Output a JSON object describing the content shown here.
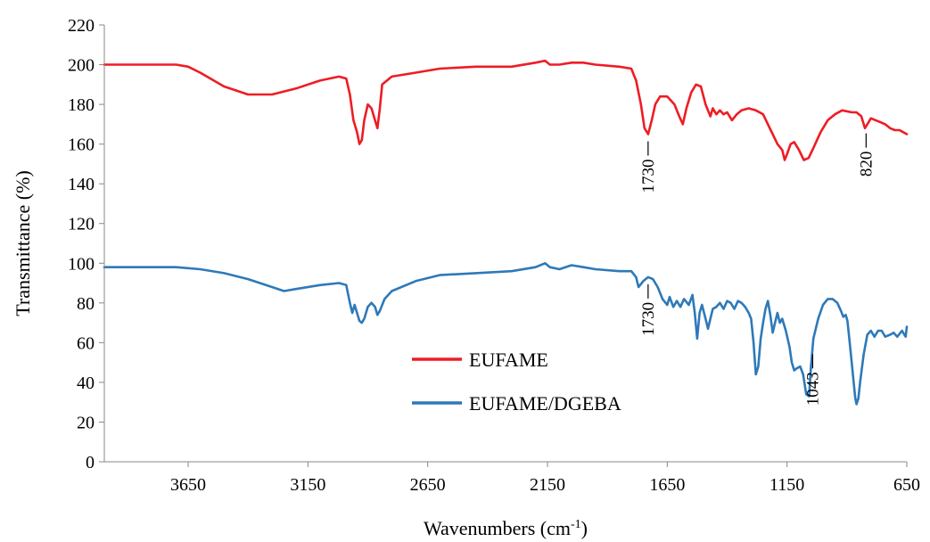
{
  "chart_data": {
    "type": "line",
    "xlabel": "Wavenumbers (cm",
    "xlabel_sup": "-1",
    "xlabel_close": ")",
    "ylabel": "Transmittance (%)",
    "xlim": [
      4000,
      650
    ],
    "ylim": [
      0,
      220
    ],
    "x_reversed": true,
    "xticks": [
      3650,
      3150,
      2650,
      2150,
      1650,
      1150,
      650
    ],
    "yticks": [
      0,
      20,
      40,
      60,
      80,
      100,
      120,
      140,
      160,
      180,
      200,
      220
    ],
    "grid": false,
    "legend_position": "center-left",
    "series": [
      {
        "name": "EUFAME",
        "color": "#ee1c25",
        "points": [
          [
            4000,
            200
          ],
          [
            3850,
            200
          ],
          [
            3700,
            200
          ],
          [
            3650,
            199
          ],
          [
            3600,
            196
          ],
          [
            3500,
            189
          ],
          [
            3400,
            185
          ],
          [
            3300,
            185
          ],
          [
            3200,
            188
          ],
          [
            3100,
            192
          ],
          [
            3020,
            194
          ],
          [
            2990,
            193
          ],
          [
            2975,
            185
          ],
          [
            2960,
            172
          ],
          [
            2945,
            166
          ],
          [
            2935,
            160
          ],
          [
            2925,
            162
          ],
          [
            2915,
            172
          ],
          [
            2900,
            180
          ],
          [
            2885,
            178
          ],
          [
            2870,
            172
          ],
          [
            2860,
            168
          ],
          [
            2850,
            178
          ],
          [
            2840,
            190
          ],
          [
            2800,
            194
          ],
          [
            2700,
            196
          ],
          [
            2600,
            198
          ],
          [
            2450,
            199
          ],
          [
            2300,
            199
          ],
          [
            2200,
            201
          ],
          [
            2160,
            202
          ],
          [
            2140,
            200
          ],
          [
            2100,
            200
          ],
          [
            2050,
            201
          ],
          [
            2000,
            201
          ],
          [
            1950,
            200
          ],
          [
            1850,
            199
          ],
          [
            1800,
            198
          ],
          [
            1780,
            192
          ],
          [
            1760,
            180
          ],
          [
            1745,
            168
          ],
          [
            1730,
            165
          ],
          [
            1715,
            172
          ],
          [
            1700,
            180
          ],
          [
            1680,
            184
          ],
          [
            1650,
            184
          ],
          [
            1620,
            180
          ],
          [
            1600,
            174
          ],
          [
            1585,
            170
          ],
          [
            1570,
            178
          ],
          [
            1550,
            186
          ],
          [
            1530,
            190
          ],
          [
            1510,
            189
          ],
          [
            1490,
            180
          ],
          [
            1470,
            174
          ],
          [
            1460,
            178
          ],
          [
            1445,
            175
          ],
          [
            1430,
            177
          ],
          [
            1415,
            175
          ],
          [
            1400,
            176
          ],
          [
            1380,
            172
          ],
          [
            1360,
            175
          ],
          [
            1340,
            177
          ],
          [
            1310,
            178
          ],
          [
            1280,
            177
          ],
          [
            1250,
            175
          ],
          [
            1230,
            170
          ],
          [
            1210,
            165
          ],
          [
            1190,
            160
          ],
          [
            1170,
            157
          ],
          [
            1160,
            152
          ],
          [
            1150,
            155
          ],
          [
            1135,
            160
          ],
          [
            1120,
            161
          ],
          [
            1100,
            157
          ],
          [
            1080,
            152
          ],
          [
            1060,
            153
          ],
          [
            1040,
            158
          ],
          [
            1010,
            166
          ],
          [
            980,
            172
          ],
          [
            950,
            175
          ],
          [
            920,
            177
          ],
          [
            880,
            176
          ],
          [
            860,
            176
          ],
          [
            840,
            174
          ],
          [
            825,
            168
          ],
          [
            815,
            170
          ],
          [
            800,
            173
          ],
          [
            780,
            172
          ],
          [
            760,
            171
          ],
          [
            740,
            170
          ],
          [
            720,
            168
          ],
          [
            700,
            167
          ],
          [
            680,
            167
          ],
          [
            650,
            165
          ]
        ]
      },
      {
        "name": "EUFAME/DGEBA",
        "color": "#2e79b9",
        "points": [
          [
            4000,
            98
          ],
          [
            3850,
            98
          ],
          [
            3700,
            98
          ],
          [
            3600,
            97
          ],
          [
            3500,
            95
          ],
          [
            3400,
            92
          ],
          [
            3300,
            88
          ],
          [
            3250,
            86
          ],
          [
            3200,
            87
          ],
          [
            3100,
            89
          ],
          [
            3020,
            90
          ],
          [
            2990,
            89
          ],
          [
            2975,
            80
          ],
          [
            2965,
            75
          ],
          [
            2955,
            79
          ],
          [
            2945,
            75
          ],
          [
            2935,
            71
          ],
          [
            2925,
            70
          ],
          [
            2915,
            72
          ],
          [
            2900,
            78
          ],
          [
            2885,
            80
          ],
          [
            2870,
            78
          ],
          [
            2860,
            74
          ],
          [
            2850,
            76
          ],
          [
            2830,
            82
          ],
          [
            2800,
            86
          ],
          [
            2700,
            91
          ],
          [
            2600,
            94
          ],
          [
            2450,
            95
          ],
          [
            2300,
            96
          ],
          [
            2200,
            98
          ],
          [
            2160,
            100
          ],
          [
            2140,
            98
          ],
          [
            2100,
            97
          ],
          [
            2050,
            99
          ],
          [
            2000,
            98
          ],
          [
            1950,
            97
          ],
          [
            1850,
            96
          ],
          [
            1800,
            96
          ],
          [
            1780,
            93
          ],
          [
            1770,
            88
          ],
          [
            1750,
            91
          ],
          [
            1730,
            93
          ],
          [
            1710,
            92
          ],
          [
            1690,
            88
          ],
          [
            1670,
            82
          ],
          [
            1650,
            79
          ],
          [
            1640,
            83
          ],
          [
            1625,
            78
          ],
          [
            1610,
            81
          ],
          [
            1595,
            78
          ],
          [
            1580,
            82
          ],
          [
            1560,
            79
          ],
          [
            1545,
            84
          ],
          [
            1535,
            75
          ],
          [
            1525,
            62
          ],
          [
            1515,
            75
          ],
          [
            1505,
            79
          ],
          [
            1490,
            72
          ],
          [
            1480,
            67
          ],
          [
            1470,
            72
          ],
          [
            1460,
            77
          ],
          [
            1445,
            78
          ],
          [
            1430,
            80
          ],
          [
            1415,
            77
          ],
          [
            1400,
            81
          ],
          [
            1385,
            80
          ],
          [
            1370,
            77
          ],
          [
            1355,
            81
          ],
          [
            1340,
            80
          ],
          [
            1325,
            78
          ],
          [
            1310,
            75
          ],
          [
            1300,
            72
          ],
          [
            1290,
            60
          ],
          [
            1280,
            44
          ],
          [
            1270,
            48
          ],
          [
            1260,
            62
          ],
          [
            1250,
            70
          ],
          [
            1240,
            77
          ],
          [
            1230,
            81
          ],
          [
            1220,
            74
          ],
          [
            1210,
            65
          ],
          [
            1200,
            70
          ],
          [
            1190,
            75
          ],
          [
            1180,
            70
          ],
          [
            1170,
            72
          ],
          [
            1155,
            66
          ],
          [
            1140,
            58
          ],
          [
            1130,
            50
          ],
          [
            1120,
            46
          ],
          [
            1110,
            47
          ],
          [
            1095,
            48
          ],
          [
            1083,
            44
          ],
          [
            1070,
            34
          ],
          [
            1058,
            33
          ],
          [
            1050,
            48
          ],
          [
            1040,
            62
          ],
          [
            1020,
            72
          ],
          [
            1000,
            79
          ],
          [
            980,
            82
          ],
          [
            960,
            82
          ],
          [
            940,
            80
          ],
          [
            925,
            76
          ],
          [
            915,
            73
          ],
          [
            905,
            74
          ],
          [
            898,
            71
          ],
          [
            890,
            62
          ],
          [
            880,
            50
          ],
          [
            872,
            40
          ],
          [
            865,
            32
          ],
          [
            860,
            29
          ],
          [
            852,
            32
          ],
          [
            845,
            40
          ],
          [
            830,
            54
          ],
          [
            815,
            64
          ],
          [
            800,
            66
          ],
          [
            785,
            63
          ],
          [
            770,
            66
          ],
          [
            755,
            66
          ],
          [
            740,
            63
          ],
          [
            720,
            64
          ],
          [
            705,
            65
          ],
          [
            690,
            63
          ],
          [
            670,
            66
          ],
          [
            655,
            63
          ],
          [
            650,
            68
          ]
        ]
      }
    ],
    "annotations": [
      {
        "label": "1730",
        "series": "EUFAME",
        "x": 1730
      },
      {
        "label": "820",
        "series": "EUFAME",
        "x": 820
      },
      {
        "label": "1730",
        "series": "EUFAME/DGEBA",
        "x": 1730
      },
      {
        "label": "1043",
        "series": "EUFAME/DGEBA",
        "x": 1043
      }
    ]
  }
}
